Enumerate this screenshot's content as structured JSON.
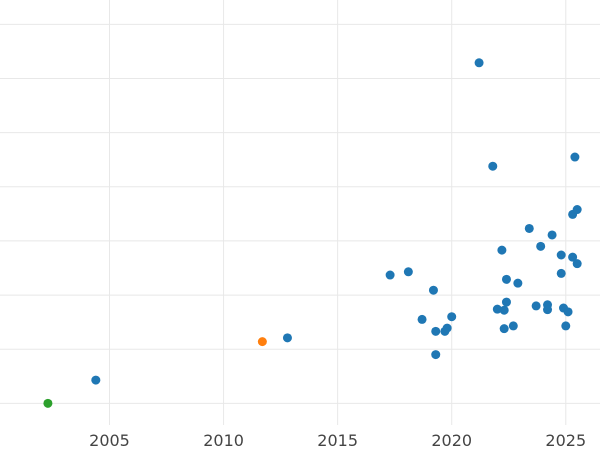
{
  "chart_data": {
    "type": "scatter",
    "title": "",
    "xlabel": "",
    "ylabel": "",
    "xlim": [
      2000.2,
      2026.5
    ],
    "ylim": [
      -0.4,
      7.45
    ],
    "xticks": [
      2005,
      2010,
      2015,
      2020,
      2025
    ],
    "yticks": [
      0,
      1,
      2,
      3,
      4,
      5,
      6,
      7
    ],
    "ytick_labels_visible": false,
    "grid": true,
    "legend": "none",
    "series": [
      {
        "color": "#1f77b4",
        "points": [
          {
            "x": 2004.4,
            "y": 0.43
          },
          {
            "x": 2012.8,
            "y": 1.21
          },
          {
            "x": 2017.3,
            "y": 2.37
          },
          {
            "x": 2018.1,
            "y": 2.43
          },
          {
            "x": 2018.7,
            "y": 1.55
          },
          {
            "x": 2019.2,
            "y": 2.09
          },
          {
            "x": 2019.3,
            "y": 1.33
          },
          {
            "x": 2019.3,
            "y": 0.9
          },
          {
            "x": 2019.7,
            "y": 1.33
          },
          {
            "x": 2019.8,
            "y": 1.39
          },
          {
            "x": 2020.0,
            "y": 1.6
          },
          {
            "x": 2021.2,
            "y": 6.29
          },
          {
            "x": 2021.8,
            "y": 4.38
          },
          {
            "x": 2022.0,
            "y": 1.74
          },
          {
            "x": 2022.2,
            "y": 2.83
          },
          {
            "x": 2022.3,
            "y": 1.38
          },
          {
            "x": 2022.3,
            "y": 1.72
          },
          {
            "x": 2022.4,
            "y": 2.29
          },
          {
            "x": 2022.4,
            "y": 1.87
          },
          {
            "x": 2022.7,
            "y": 1.43
          },
          {
            "x": 2022.9,
            "y": 2.22
          },
          {
            "x": 2023.4,
            "y": 3.23
          },
          {
            "x": 2023.7,
            "y": 1.8
          },
          {
            "x": 2023.9,
            "y": 2.9
          },
          {
            "x": 2024.2,
            "y": 1.82
          },
          {
            "x": 2024.2,
            "y": 1.73
          },
          {
            "x": 2024.4,
            "y": 3.11
          },
          {
            "x": 2024.8,
            "y": 2.74
          },
          {
            "x": 2024.8,
            "y": 2.4
          },
          {
            "x": 2024.9,
            "y": 1.76
          },
          {
            "x": 2025.1,
            "y": 1.69
          },
          {
            "x": 2025.0,
            "y": 1.43
          },
          {
            "x": 2025.3,
            "y": 3.49
          },
          {
            "x": 2025.4,
            "y": 4.55
          },
          {
            "x": 2025.3,
            "y": 2.7
          },
          {
            "x": 2025.5,
            "y": 3.58
          },
          {
            "x": 2025.5,
            "y": 2.58
          }
        ]
      },
      {
        "color": "#ff7f0e",
        "points": [
          {
            "x": 2011.7,
            "y": 1.14
          }
        ]
      },
      {
        "color": "#2ca02c",
        "points": [
          {
            "x": 2002.3,
            "y": 0.0
          }
        ]
      }
    ]
  }
}
